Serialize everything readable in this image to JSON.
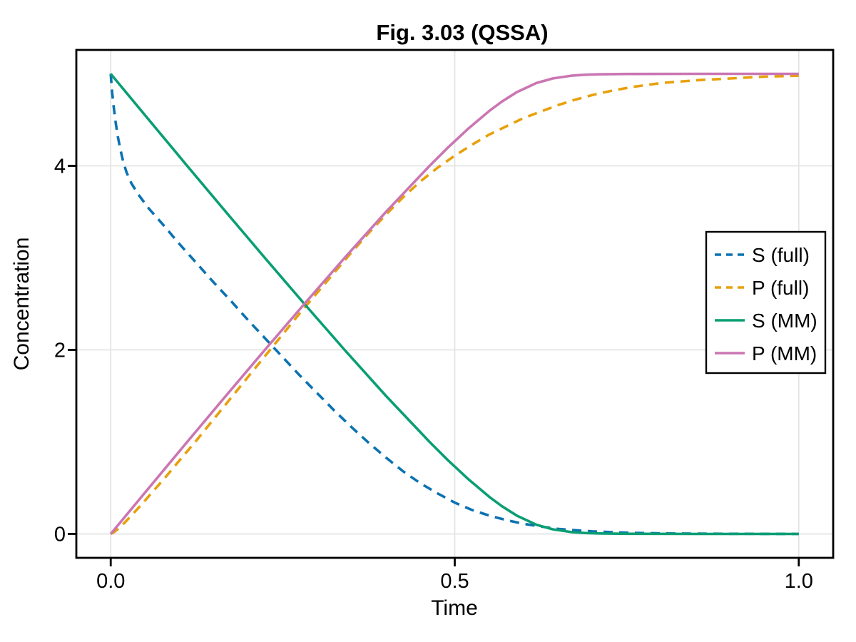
{
  "chart_data": {
    "type": "line",
    "title": "Fig. 3.03 (QSSA)",
    "xlabel": "Time",
    "ylabel": "Concentration",
    "xlim": [
      -0.05,
      1.05
    ],
    "ylim": [
      -0.26,
      5.26
    ],
    "xticks": {
      "values": [
        0.0,
        0.5,
        1.0
      ],
      "labels": [
        "0.0",
        "0.5",
        "1.0"
      ]
    },
    "yticks": {
      "values": [
        0,
        2,
        4
      ],
      "labels": [
        "0",
        "2",
        "4"
      ]
    },
    "grid": true,
    "grid_color": "#e4e4e4",
    "axis_color": "#000000",
    "legend": {
      "position": "right-center",
      "border": true,
      "background": "#ffffff"
    },
    "series": [
      {
        "name": "S (full)",
        "color": "#0b72b2",
        "style": "dashed",
        "points": [
          [
            0,
            5.0
          ],
          [
            0.002,
            4.8
          ],
          [
            0.004,
            4.66
          ],
          [
            0.007,
            4.48
          ],
          [
            0.01,
            4.33
          ],
          [
            0.014,
            4.18
          ],
          [
            0.018,
            4.05
          ],
          [
            0.023,
            3.93
          ],
          [
            0.03,
            3.81
          ],
          [
            0.04,
            3.69
          ],
          [
            0.055,
            3.54
          ],
          [
            0.075,
            3.37
          ],
          [
            0.1,
            3.15
          ],
          [
            0.125,
            2.94
          ],
          [
            0.15,
            2.73
          ],
          [
            0.175,
            2.53
          ],
          [
            0.2,
            2.32
          ],
          [
            0.225,
            2.12
          ],
          [
            0.25,
            1.92
          ],
          [
            0.275,
            1.72
          ],
          [
            0.3,
            1.53
          ],
          [
            0.325,
            1.34
          ],
          [
            0.35,
            1.16
          ],
          [
            0.375,
            0.99
          ],
          [
            0.4,
            0.83
          ],
          [
            0.425,
            0.68
          ],
          [
            0.45,
            0.55
          ],
          [
            0.475,
            0.44
          ],
          [
            0.5,
            0.34
          ],
          [
            0.525,
            0.26
          ],
          [
            0.55,
            0.2
          ],
          [
            0.575,
            0.15
          ],
          [
            0.6,
            0.11
          ],
          [
            0.625,
            0.08
          ],
          [
            0.65,
            0.055
          ],
          [
            0.675,
            0.04
          ],
          [
            0.7,
            0.028
          ],
          [
            0.73,
            0.018
          ],
          [
            0.76,
            0.011
          ],
          [
            0.8,
            0.006
          ],
          [
            0.85,
            0.003
          ],
          [
            0.9,
            0.001
          ],
          [
            1.0,
            0.0
          ]
        ]
      },
      {
        "name": "P (full)",
        "color": "#e8a00b",
        "style": "dashed",
        "points": [
          [
            0,
            0.0
          ],
          [
            0.005,
            0.02
          ],
          [
            0.01,
            0.05
          ],
          [
            0.02,
            0.12
          ],
          [
            0.03,
            0.2
          ],
          [
            0.045,
            0.32
          ],
          [
            0.06,
            0.45
          ],
          [
            0.08,
            0.62
          ],
          [
            0.1,
            0.8
          ],
          [
            0.125,
            1.02
          ],
          [
            0.15,
            1.25
          ],
          [
            0.175,
            1.48
          ],
          [
            0.2,
            1.71
          ],
          [
            0.225,
            1.94
          ],
          [
            0.25,
            2.17
          ],
          [
            0.275,
            2.4
          ],
          [
            0.3,
            2.62
          ],
          [
            0.325,
            2.84
          ],
          [
            0.35,
            3.06
          ],
          [
            0.375,
            3.27
          ],
          [
            0.4,
            3.47
          ],
          [
            0.425,
            3.66
          ],
          [
            0.45,
            3.83
          ],
          [
            0.475,
            3.98
          ],
          [
            0.5,
            4.11
          ],
          [
            0.525,
            4.23
          ],
          [
            0.55,
            4.34
          ],
          [
            0.575,
            4.43
          ],
          [
            0.6,
            4.52
          ],
          [
            0.625,
            4.59
          ],
          [
            0.65,
            4.66
          ],
          [
            0.675,
            4.72
          ],
          [
            0.7,
            4.77
          ],
          [
            0.73,
            4.82
          ],
          [
            0.76,
            4.86
          ],
          [
            0.8,
            4.9
          ],
          [
            0.85,
            4.93
          ],
          [
            0.9,
            4.95
          ],
          [
            0.95,
            4.97
          ],
          [
            1.0,
            4.98
          ]
        ]
      },
      {
        "name": "S (MM)",
        "color": "#0a9e73",
        "style": "solid",
        "points": [
          [
            0,
            5.0
          ],
          [
            0.0554,
            4.5
          ],
          [
            0.1111,
            4.0
          ],
          [
            0.1673,
            3.5
          ],
          [
            0.224,
            3.0
          ],
          [
            0.2814,
            2.5
          ],
          [
            0.3399,
            2.0
          ],
          [
            0.4001,
            1.5
          ],
          [
            0.4634,
            1.0
          ],
          [
            0.4903,
            0.8
          ],
          [
            0.519,
            0.6
          ],
          [
            0.5507,
            0.4
          ],
          [
            0.5688,
            0.3
          ],
          [
            0.59,
            0.2
          ],
          [
            0.6187,
            0.1
          ],
          [
            0.6422,
            0.05
          ],
          [
            0.6695,
            0.02
          ],
          [
            0.6888,
            0.01
          ],
          [
            0.7076,
            0.005
          ],
          [
            0.7504,
            0.001
          ],
          [
            0.85,
            0.0
          ],
          [
            1.0,
            0.0
          ]
        ]
      },
      {
        "name": "P (MM)",
        "color": "#ca76b2",
        "style": "solid",
        "points": [
          [
            0,
            0.0
          ],
          [
            0.0554,
            0.5
          ],
          [
            0.1111,
            1.0
          ],
          [
            0.1673,
            1.5
          ],
          [
            0.224,
            2.0
          ],
          [
            0.2814,
            2.5
          ],
          [
            0.3399,
            3.0
          ],
          [
            0.4001,
            3.5
          ],
          [
            0.4634,
            4.0
          ],
          [
            0.4903,
            4.2
          ],
          [
            0.519,
            4.4
          ],
          [
            0.5507,
            4.6
          ],
          [
            0.5688,
            4.7
          ],
          [
            0.59,
            4.8
          ],
          [
            0.6187,
            4.9
          ],
          [
            0.6422,
            4.95
          ],
          [
            0.6695,
            4.98
          ],
          [
            0.6888,
            4.99
          ],
          [
            0.7076,
            4.995
          ],
          [
            0.7504,
            4.999
          ],
          [
            0.85,
            5.0
          ],
          [
            1.0,
            5.0
          ]
        ]
      }
    ]
  }
}
